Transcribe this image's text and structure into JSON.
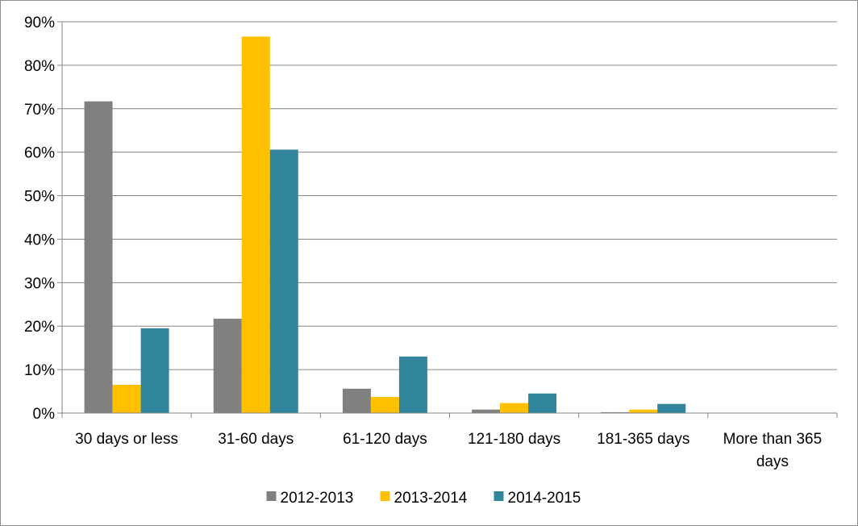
{
  "chart_data": {
    "type": "bar",
    "categories": [
      [
        "30 days or less"
      ],
      [
        "31-60 days"
      ],
      [
        "61-120 days"
      ],
      [
        "121-180 days"
      ],
      [
        "181-365 days"
      ],
      [
        "More than 365",
        "days"
      ]
    ],
    "series": [
      {
        "name": "2012-2013",
        "color": "#808080",
        "values": [
          71.7,
          21.7,
          5.6,
          0.8,
          0.2,
          0
        ]
      },
      {
        "name": "2013-2014",
        "color": "#FFC000",
        "values": [
          6.5,
          86.6,
          3.7,
          2.3,
          0.8,
          0
        ]
      },
      {
        "name": "2014-2015",
        "color": "#31859C",
        "values": [
          19.5,
          60.6,
          13.0,
          4.5,
          2.1,
          0
        ]
      }
    ],
    "y_ticks": [
      "0%",
      "10%",
      "20%",
      "30%",
      "40%",
      "50%",
      "60%",
      "70%",
      "80%",
      "90%"
    ],
    "ylim": [
      0,
      90
    ],
    "y_unit": "%",
    "grid": true,
    "legend_position": "bottom",
    "gridline_color": "#868686"
  }
}
